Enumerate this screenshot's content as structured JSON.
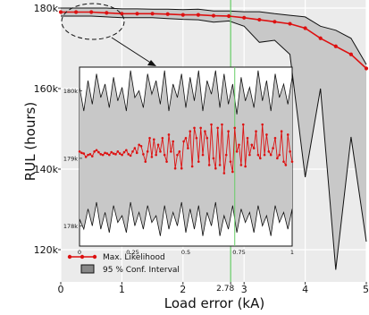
{
  "chart_data": [
    {
      "type": "line",
      "title": "",
      "xlabel": "Load error (kA)",
      "ylabel": "RUL (hours)",
      "xlim": [
        0,
        5
      ],
      "ylim": [
        112000,
        182000
      ],
      "xticks": [
        {
          "value": 0,
          "label": "0"
        },
        {
          "value": 1,
          "label": "1"
        },
        {
          "value": 2,
          "label": "2"
        },
        {
          "value": 2.78,
          "label": "2.78"
        },
        {
          "value": 3,
          "label": "3"
        },
        {
          "value": 4,
          "label": "4"
        },
        {
          "value": 5,
          "label": "5"
        }
      ],
      "yticks": [
        {
          "value": 120000,
          "label": "120k"
        },
        {
          "value": 140000,
          "label": "140k"
        },
        {
          "value": 160000,
          "label": "160k"
        },
        {
          "value": 180000,
          "label": "180k"
        }
      ],
      "vline": {
        "x": 2.78,
        "color": "#66cc66"
      },
      "grid": true,
      "legend_position": "bottom-left",
      "colors": {
        "ml": "#dd1111",
        "band": "#c8c8c8",
        "band_edge": "#111111",
        "panel": "#ebebeb",
        "grid": "#ffffff"
      },
      "series": [
        {
          "name": "Max. Likelihood",
          "x": [
            0,
            0.25,
            0.5,
            0.75,
            1,
            1.25,
            1.5,
            1.75,
            2,
            2.25,
            2.5,
            2.75,
            3,
            3.25,
            3.5,
            3.75,
            4,
            4.25,
            4.5,
            4.75,
            5
          ],
          "y": [
            179000,
            179000,
            179000,
            178800,
            178600,
            178600,
            178600,
            178500,
            178300,
            178300,
            178100,
            178000,
            177600,
            177100,
            176600,
            176100,
            175000,
            172500,
            170500,
            168500,
            165000
          ]
        },
        {
          "name": "95 % Conf. Interval",
          "x": [
            0,
            0.25,
            0.5,
            0.75,
            1,
            1.25,
            1.5,
            1.75,
            2,
            2.25,
            2.5,
            2.75,
            3,
            3.25,
            3.5,
            3.75,
            4,
            4.25,
            4.5,
            4.75,
            5
          ],
          "upper": [
            180000,
            180000,
            180000,
            180000,
            179800,
            179800,
            179700,
            179700,
            179600,
            179700,
            179300,
            179300,
            179100,
            179100,
            178600,
            178200,
            177800,
            175500,
            174500,
            172500,
            166000
          ],
          "lower": [
            178000,
            178000,
            178000,
            177800,
            177600,
            177600,
            177600,
            177400,
            177200,
            177100,
            176500,
            176800,
            175500,
            171500,
            172000,
            168500,
            138000,
            160000,
            115000,
            148000,
            122000
          ]
        }
      ]
    },
    {
      "type": "line",
      "title": "",
      "xlabel": "",
      "ylabel": "",
      "xlim": [
        0,
        1
      ],
      "ylim": [
        177700,
        180350
      ],
      "xticks": [
        {
          "value": 0,
          "label": "0"
        },
        {
          "value": 0.25,
          "label": "0.25"
        },
        {
          "value": 0.5,
          "label": "0.5"
        },
        {
          "value": 0.75,
          "label": "0.75"
        },
        {
          "value": 1,
          "label": "1"
        }
      ],
      "yticks": [
        {
          "value": 178000,
          "label": "178k"
        },
        {
          "value": 179000,
          "label": "179k"
        },
        {
          "value": 180000,
          "label": "180k"
        }
      ],
      "vline": {
        "x": 0.73,
        "color": "#66cc66"
      },
      "grid": false,
      "inset_of": 0,
      "zoom_region_x": [
        0,
        1
      ],
      "series": [
        {
          "name": "Max. Likelihood",
          "x": [
            0,
            0.01,
            0.02,
            0.03,
            0.04,
            0.05,
            0.06,
            0.07,
            0.08,
            0.09,
            0.1,
            0.11,
            0.12,
            0.13,
            0.14,
            0.15,
            0.16,
            0.17,
            0.18,
            0.19,
            0.2,
            0.21,
            0.22,
            0.23,
            0.24,
            0.25,
            0.26,
            0.27,
            0.28,
            0.29,
            0.3,
            0.31,
            0.32,
            0.33,
            0.34,
            0.35,
            0.36,
            0.37,
            0.38,
            0.39,
            0.4,
            0.41,
            0.42,
            0.43,
            0.44,
            0.45,
            0.46,
            0.47,
            0.48,
            0.49,
            0.5,
            0.51,
            0.52,
            0.53,
            0.54,
            0.55,
            0.56,
            0.57,
            0.58,
            0.59,
            0.6,
            0.61,
            0.62,
            0.63,
            0.64,
            0.65,
            0.66,
            0.67,
            0.68,
            0.69,
            0.7,
            0.71,
            0.72,
            0.73,
            0.74,
            0.75,
            0.76,
            0.77,
            0.78,
            0.79,
            0.8,
            0.81,
            0.82,
            0.83,
            0.84,
            0.85,
            0.86,
            0.87,
            0.88,
            0.89,
            0.9,
            0.91,
            0.92,
            0.93,
            0.94,
            0.95,
            0.96,
            0.97,
            0.98,
            0.99,
            1
          ],
          "y": [
            179100,
            179080,
            179070,
            179020,
            179050,
            179060,
            179030,
            179100,
            179120,
            179090,
            179060,
            179050,
            179080,
            179070,
            179050,
            179090,
            179070,
            179060,
            179100,
            179070,
            179050,
            179090,
            179120,
            179060,
            179040,
            179100,
            179150,
            179080,
            179200,
            179180,
            179060,
            178950,
            179100,
            179300,
            179020,
            179280,
            179050,
            179200,
            179100,
            179300,
            179050,
            178950,
            179350,
            179100,
            179250,
            178850,
            179050,
            179100,
            178850,
            179250,
            179300,
            179150,
            179400,
            178880,
            179450,
            179300,
            178950,
            179450,
            179050,
            179400,
            179300,
            178900,
            179500,
            179000,
            178850,
            179450,
            178900,
            179500,
            178780,
            179050,
            179400,
            178950,
            178800,
            179450,
            179100,
            179200,
            178900,
            179500,
            178880,
            179300,
            179050,
            179200,
            179150,
            179400,
            179050,
            179000,
            179500,
            179050,
            179350,
            179100,
            179050,
            179150,
            179300,
            179000,
            179050,
            179400,
            178950,
            178900,
            179350,
            179100,
            178950
          ]
        },
        {
          "name": "95 % Conf. Interval",
          "x": [
            0,
            0.02,
            0.04,
            0.06,
            0.08,
            0.1,
            0.12,
            0.14,
            0.16,
            0.18,
            0.2,
            0.22,
            0.24,
            0.26,
            0.28,
            0.3,
            0.32,
            0.34,
            0.36,
            0.38,
            0.4,
            0.42,
            0.44,
            0.46,
            0.48,
            0.5,
            0.52,
            0.54,
            0.56,
            0.58,
            0.6,
            0.62,
            0.64,
            0.66,
            0.68,
            0.7,
            0.72,
            0.74,
            0.76,
            0.78,
            0.8,
            0.82,
            0.84,
            0.86,
            0.88,
            0.9,
            0.92,
            0.94,
            0.96,
            0.98,
            1
          ],
          "upper": [
            180050,
            179700,
            180150,
            179800,
            180250,
            179900,
            180100,
            179750,
            180200,
            179850,
            180050,
            179700,
            180300,
            179900,
            180000,
            179750,
            180250,
            179950,
            180150,
            179800,
            180300,
            179700,
            180100,
            179900,
            180250,
            179750,
            180200,
            179850,
            180300,
            179700,
            180150,
            179950,
            180300,
            179750,
            180250,
            179800,
            180100,
            179650,
            180200,
            179850,
            180050,
            179750,
            180300,
            179850,
            180150,
            179700,
            180250,
            179900,
            180100,
            179800,
            180200
          ],
          "lower": [
            178100,
            177950,
            178250,
            178000,
            178350,
            177950,
            178200,
            177900,
            178300,
            178050,
            178150,
            177900,
            178350,
            178000,
            178200,
            177950,
            178300,
            178050,
            178150,
            177850,
            178300,
            177950,
            178200,
            178000,
            178350,
            177900,
            178250,
            177950,
            178300,
            177850,
            178200,
            178000,
            178350,
            177850,
            178150,
            177950,
            178300,
            177900,
            178250,
            178050,
            178200,
            177900,
            178300,
            178000,
            178150,
            177850,
            178300,
            178050,
            178200,
            177950,
            178250
          ]
        }
      ]
    }
  ]
}
